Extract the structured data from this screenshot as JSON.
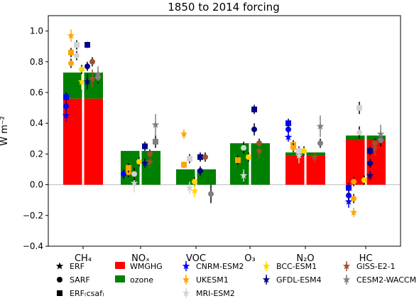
{
  "chart_data": {
    "type": "bar",
    "title": "1850 to 2014 forcing",
    "ylabel": "W m⁻²",
    "ylim": [
      -0.4,
      1.1
    ],
    "yticks": [
      "−0.4",
      "−0.2",
      "0.0",
      "0.2",
      "0.4",
      "0.6",
      "0.8",
      "1.0"
    ],
    "ytick_values": [
      -0.4,
      -0.2,
      0.0,
      0.2,
      0.4,
      0.6,
      0.8,
      1.0
    ],
    "categories": [
      {
        "label": "CH₄"
      },
      {
        "label": "NOₓ"
      },
      {
        "label": "VOC"
      },
      {
        "label": "O₃"
      },
      {
        "label": "N₂O"
      },
      {
        "label": "HC"
      }
    ],
    "bar_series": [
      {
        "name": "WMGHG",
        "color": "#ff0000",
        "values": [
          0.56,
          0,
          0,
          0,
          0.19,
          0.32
        ]
      },
      {
        "name": "ozone",
        "color": "#008000",
        "values": [
          0.17,
          0.22,
          0.1,
          0.27,
          0.02,
          -0.03
        ]
      }
    ],
    "models": [
      {
        "name": "CNRM-ESM2",
        "color": "#0000ff"
      },
      {
        "name": "UKESM1",
        "color": "#ffa500"
      },
      {
        "name": "MRI-ESM2",
        "color": "#d3d3d3"
      },
      {
        "name": "BCC-ESM1",
        "color": "#ffd700"
      },
      {
        "name": "GFDL-ESM4",
        "color": "#00008b"
      },
      {
        "name": "GISS-E2-1",
        "color": "#a0522d"
      },
      {
        "name": "CESM2-WACCM",
        "color": "#808080"
      }
    ],
    "markers": [
      {
        "name": "ERF",
        "shape": "star"
      },
      {
        "name": "SARF",
        "shape": "circle"
      },
      {
        "name": "ERF₍csaf₎",
        "shape": "square"
      }
    ],
    "points": [
      {
        "cat": 0,
        "model": 0,
        "type": "star",
        "value": 0.45,
        "err": 0.04
      },
      {
        "cat": 0,
        "model": 0,
        "type": "circle",
        "value": 0.51,
        "err": 0.03
      },
      {
        "cat": 0,
        "model": 0,
        "type": "square",
        "value": 0.57,
        "err": 0.03
      },
      {
        "cat": 0,
        "model": 1,
        "type": "star",
        "value": 0.97,
        "err": 0.04
      },
      {
        "cat": 0,
        "model": 1,
        "type": "square",
        "value": 0.86,
        "err": 0.03
      },
      {
        "cat": 0,
        "model": 1,
        "type": "circle",
        "value": 0.79,
        "err": 0.03
      },
      {
        "cat": 0,
        "model": 2,
        "type": "square",
        "value": 0.91,
        "err": 0.03
      },
      {
        "cat": 0,
        "model": 2,
        "type": "circle",
        "value": 0.84,
        "err": 0.03
      },
      {
        "cat": 0,
        "model": 3,
        "type": "star",
        "value": 0.67,
        "err": 0.05
      },
      {
        "cat": 0,
        "model": 3,
        "type": "circle",
        "value": 0.75,
        "err": 0.03
      },
      {
        "cat": 0,
        "model": 4,
        "type": "square",
        "value": 0.91,
        "err": 0.02
      },
      {
        "cat": 0,
        "model": 4,
        "type": "circle",
        "value": 0.77,
        "err": 0.03
      },
      {
        "cat": 0,
        "model": 4,
        "type": "star",
        "value": 0.67,
        "err": 0.05
      },
      {
        "cat": 0,
        "model": 5,
        "type": "circle",
        "value": 0.8,
        "err": 0.03
      },
      {
        "cat": 0,
        "model": 5,
        "type": "star",
        "value": 0.69,
        "err": 0.06
      },
      {
        "cat": 0,
        "model": 6,
        "type": "circle",
        "value": 0.7,
        "err": 0.04
      },
      {
        "cat": 0,
        "model": 6,
        "type": "star",
        "value": 0.72,
        "err": 0.05
      },
      {
        "cat": 1,
        "model": 0,
        "type": "circle",
        "value": 0.07,
        "err": 0.03
      },
      {
        "cat": 1,
        "model": 1,
        "type": "circle",
        "value": 0.08,
        "err": 0.03
      },
      {
        "cat": 1,
        "model": 1,
        "type": "square",
        "value": 0.11,
        "err": 0.03
      },
      {
        "cat": 1,
        "model": 2,
        "type": "star",
        "value": 0.01,
        "err": 0.06
      },
      {
        "cat": 1,
        "model": 2,
        "type": "circle",
        "value": 0.07,
        "err": 0.04
      },
      {
        "cat": 1,
        "model": 3,
        "type": "circle",
        "value": 0.15,
        "err": 0.03
      },
      {
        "cat": 1,
        "model": 4,
        "type": "square",
        "value": 0.25,
        "err": 0.03
      },
      {
        "cat": 1,
        "model": 4,
        "type": "star",
        "value": 0.14,
        "err": 0.03
      },
      {
        "cat": 1,
        "model": 5,
        "type": "circle",
        "value": 0.2,
        "err": 0.03
      },
      {
        "cat": 1,
        "model": 5,
        "type": "star",
        "value": 0.15,
        "err": 0.04
      },
      {
        "cat": 1,
        "model": 6,
        "type": "square",
        "value": 0.28,
        "err": 0.04
      },
      {
        "cat": 1,
        "model": 6,
        "type": "star",
        "value": 0.39,
        "err": 0.07
      },
      {
        "cat": 2,
        "model": 1,
        "type": "star",
        "value": 0.33,
        "err": 0.03
      },
      {
        "cat": 2,
        "model": 1,
        "type": "square",
        "value": 0.13,
        "err": 0.02
      },
      {
        "cat": 2,
        "model": 2,
        "type": "square",
        "value": 0.17,
        "err": 0.03
      },
      {
        "cat": 2,
        "model": 2,
        "type": "star",
        "value": -0.02,
        "err": 0.04
      },
      {
        "cat": 2,
        "model": 3,
        "type": "circle",
        "value": 0.02,
        "err": 0.03
      },
      {
        "cat": 2,
        "model": 3,
        "type": "star",
        "value": -0.04,
        "err": 0.04
      },
      {
        "cat": 2,
        "model": 4,
        "type": "square",
        "value": 0.18,
        "err": 0.03
      },
      {
        "cat": 2,
        "model": 4,
        "type": "circle",
        "value": 0.09,
        "err": 0.03
      },
      {
        "cat": 2,
        "model": 5,
        "type": "circle",
        "value": 0.18,
        "err": 0.03
      },
      {
        "cat": 2,
        "model": 6,
        "type": "circle",
        "value": -0.06,
        "err": 0.06
      },
      {
        "cat": 3,
        "model": 1,
        "type": "square",
        "value": 0.16,
        "err": 0.03
      },
      {
        "cat": 3,
        "model": 2,
        "type": "star",
        "value": 0.06,
        "err": 0.04
      },
      {
        "cat": 3,
        "model": 2,
        "type": "circle",
        "value": 0.24,
        "err": 0.04
      },
      {
        "cat": 3,
        "model": 3,
        "type": "circle",
        "value": 0.18,
        "err": 0.03
      },
      {
        "cat": 3,
        "model": 4,
        "type": "square",
        "value": 0.49,
        "err": 0.03
      },
      {
        "cat": 3,
        "model": 4,
        "type": "circle",
        "value": 0.36,
        "err": 0.04
      },
      {
        "cat": 3,
        "model": 5,
        "type": "circle",
        "value": 0.27,
        "err": 0.03
      },
      {
        "cat": 3,
        "model": 5,
        "type": "star",
        "value": 0.22,
        "err": 0.05
      },
      {
        "cat": 4,
        "model": 0,
        "type": "square",
        "value": 0.4,
        "err": 0.03
      },
      {
        "cat": 4,
        "model": 0,
        "type": "circle",
        "value": 0.36,
        "err": 0.03
      },
      {
        "cat": 4,
        "model": 0,
        "type": "star",
        "value": 0.31,
        "err": 0.03
      },
      {
        "cat": 4,
        "model": 1,
        "type": "square",
        "value": 0.26,
        "err": 0.03
      },
      {
        "cat": 4,
        "model": 1,
        "type": "circle",
        "value": 0.24,
        "err": 0.03
      },
      {
        "cat": 4,
        "model": 2,
        "type": "square",
        "value": 0.22,
        "err": 0.03
      },
      {
        "cat": 4,
        "model": 2,
        "type": "star",
        "value": 0.19,
        "err": 0.05
      },
      {
        "cat": 4,
        "model": 3,
        "type": "circle",
        "value": 0.22,
        "err": 0.03
      },
      {
        "cat": 4,
        "model": 5,
        "type": "star",
        "value": 0.18,
        "err": 0.03
      },
      {
        "cat": 4,
        "model": 6,
        "type": "circle",
        "value": 0.27,
        "err": 0.03
      },
      {
        "cat": 4,
        "model": 6,
        "type": "star",
        "value": 0.38,
        "err": 0.07
      },
      {
        "cat": 5,
        "model": 0,
        "type": "star",
        "value": -0.11,
        "err": 0.04
      },
      {
        "cat": 5,
        "model": 0,
        "type": "circle",
        "value": -0.07,
        "err": 0.03
      },
      {
        "cat": 5,
        "model": 0,
        "type": "square",
        "value": -0.02,
        "err": 0.03
      },
      {
        "cat": 5,
        "model": 1,
        "type": "circle",
        "value": 0.02,
        "err": 0.03
      },
      {
        "cat": 5,
        "model": 1,
        "type": "star",
        "value": -0.18,
        "err": 0.03
      },
      {
        "cat": 5,
        "model": 1,
        "type": "circle",
        "value": -0.09,
        "err": 0.03
      },
      {
        "cat": 5,
        "model": 2,
        "type": "square",
        "value": 0.5,
        "err": 0.04
      },
      {
        "cat": 5,
        "model": 2,
        "type": "circle",
        "value": 0.34,
        "err": 0.04
      },
      {
        "cat": 5,
        "model": 3,
        "type": "circle",
        "value": 0.03,
        "err": 0.03
      },
      {
        "cat": 5,
        "model": 4,
        "type": "square",
        "value": 0.22,
        "err": 0.03
      },
      {
        "cat": 5,
        "model": 4,
        "type": "circle",
        "value": 0.14,
        "err": 0.03
      },
      {
        "cat": 5,
        "model": 4,
        "type": "star",
        "value": 0.06,
        "err": 0.03
      },
      {
        "cat": 5,
        "model": 5,
        "type": "circle",
        "value": 0.27,
        "err": 0.03
      },
      {
        "cat": 5,
        "model": 5,
        "type": "star",
        "value": 0.24,
        "err": 0.05
      },
      {
        "cat": 5,
        "model": 6,
        "type": "circle",
        "value": 0.29,
        "err": 0.04
      },
      {
        "cat": 5,
        "model": 6,
        "type": "star",
        "value": 0.33,
        "err": 0.06
      }
    ]
  }
}
